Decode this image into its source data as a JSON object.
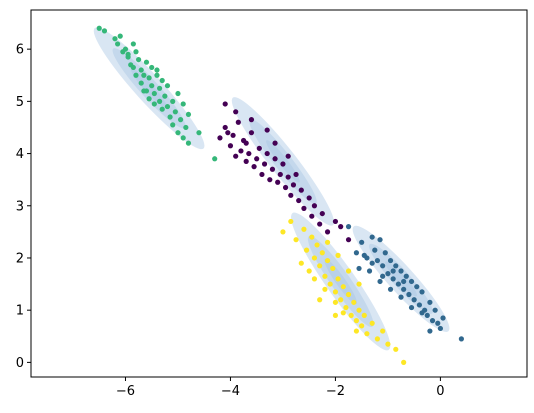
{
  "chart_data": {
    "type": "scatter",
    "title": "",
    "xlabel": "",
    "ylabel": "",
    "xlim": [
      -7.8,
      1.65
    ],
    "ylim": [
      -0.28,
      6.75
    ],
    "xticks": [
      -6,
      -4,
      -2,
      0
    ],
    "yticks": [
      0,
      1,
      2,
      3,
      4,
      5,
      6
    ],
    "grid": false,
    "legend": "none",
    "colors": {
      "green": "#35b779",
      "purple": "#440154",
      "yellow": "#fde725",
      "teal": "#31688e",
      "ellipse": "#aac8e4"
    },
    "ellipses": [
      {
        "cluster": "green",
        "cx": -5.55,
        "cy": 5.25,
        "semi_major": 1.55,
        "semi_minor": 0.26,
        "angle_deg": -48
      },
      {
        "cluster": "purple",
        "cx": -3.0,
        "cy": 3.85,
        "semi_major": 1.55,
        "semi_minor": 0.25,
        "angle_deg": -52
      },
      {
        "cluster": "yellow",
        "cx": -1.9,
        "cy": 1.55,
        "semi_major": 1.6,
        "semi_minor": 0.28,
        "angle_deg": -55
      },
      {
        "cluster": "teal",
        "cx": -0.75,
        "cy": 1.6,
        "semi_major": 1.35,
        "semi_minor": 0.25,
        "angle_deg": -48
      }
    ],
    "series": [
      {
        "color_key": "green",
        "points": [
          [
            -6.5,
            6.4
          ],
          [
            -6.4,
            6.35
          ],
          [
            -6.2,
            6.2
          ],
          [
            -6.15,
            6.1
          ],
          [
            -6.1,
            6.25
          ],
          [
            -6.05,
            5.95
          ],
          [
            -6.0,
            6.0
          ],
          [
            -5.95,
            5.85
          ],
          [
            -5.9,
            5.7
          ],
          [
            -5.85,
            5.65
          ],
          [
            -5.85,
            6.1
          ],
          [
            -5.8,
            5.5
          ],
          [
            -5.75,
            5.8
          ],
          [
            -5.7,
            5.6
          ],
          [
            -5.7,
            5.35
          ],
          [
            -5.65,
            5.5
          ],
          [
            -5.6,
            5.2
          ],
          [
            -5.6,
            5.75
          ],
          [
            -5.55,
            5.05
          ],
          [
            -5.55,
            5.45
          ],
          [
            -5.5,
            5.3
          ],
          [
            -5.5,
            5.65
          ],
          [
            -5.45,
            5.15
          ],
          [
            -5.45,
            4.95
          ],
          [
            -5.4,
            5.5
          ],
          [
            -5.35,
            5.25
          ],
          [
            -5.35,
            5.0
          ],
          [
            -5.3,
            4.85
          ],
          [
            -5.3,
            5.4
          ],
          [
            -5.25,
            5.1
          ],
          [
            -5.2,
            4.9
          ],
          [
            -5.2,
            5.3
          ],
          [
            -5.15,
            4.7
          ],
          [
            -5.1,
            5.0
          ],
          [
            -5.1,
            4.55
          ],
          [
            -5.05,
            4.8
          ],
          [
            -5.0,
            4.4
          ],
          [
            -5.0,
            5.15
          ],
          [
            -4.95,
            4.65
          ],
          [
            -4.9,
            4.3
          ],
          [
            -4.9,
            4.95
          ],
          [
            -4.85,
            4.5
          ],
          [
            -4.8,
            4.2
          ],
          [
            -4.8,
            4.75
          ],
          [
            -4.6,
            4.4
          ],
          [
            -4.3,
            3.9
          ],
          [
            -5.95,
            5.9
          ],
          [
            -5.8,
            5.95
          ],
          [
            -5.65,
            5.2
          ],
          [
            -5.4,
            5.6
          ]
        ]
      },
      {
        "color_key": "purple",
        "points": [
          [
            -4.2,
            4.3
          ],
          [
            -4.1,
            4.5
          ],
          [
            -4.0,
            4.15
          ],
          [
            -3.95,
            4.35
          ],
          [
            -3.9,
            3.95
          ],
          [
            -3.85,
            4.6
          ],
          [
            -3.8,
            4.05
          ],
          [
            -3.75,
            4.25
          ],
          [
            -3.7,
            3.85
          ],
          [
            -3.65,
            4.0
          ],
          [
            -3.6,
            4.4
          ],
          [
            -3.55,
            3.75
          ],
          [
            -3.5,
            3.9
          ],
          [
            -3.45,
            4.1
          ],
          [
            -3.4,
            3.6
          ],
          [
            -3.35,
            3.8
          ],
          [
            -3.3,
            4.0
          ],
          [
            -3.25,
            3.5
          ],
          [
            -3.2,
            3.7
          ],
          [
            -3.15,
            3.9
          ],
          [
            -3.1,
            3.45
          ],
          [
            -3.05,
            3.6
          ],
          [
            -3.0,
            3.8
          ],
          [
            -2.95,
            3.35
          ],
          [
            -2.9,
            3.55
          ],
          [
            -2.85,
            3.2
          ],
          [
            -2.8,
            3.4
          ],
          [
            -2.75,
            3.6
          ],
          [
            -2.7,
            3.1
          ],
          [
            -2.65,
            3.3
          ],
          [
            -2.6,
            2.95
          ],
          [
            -2.5,
            3.15
          ],
          [
            -2.45,
            2.8
          ],
          [
            -2.4,
            3.0
          ],
          [
            -2.3,
            2.65
          ],
          [
            -2.25,
            2.85
          ],
          [
            -2.15,
            2.5
          ],
          [
            -2.0,
            2.7
          ],
          [
            -1.9,
            2.6
          ],
          [
            -1.75,
            2.35
          ],
          [
            -4.1,
            4.95
          ],
          [
            -3.9,
            4.8
          ],
          [
            -3.6,
            4.65
          ],
          [
            -3.3,
            4.45
          ],
          [
            -3.15,
            4.2
          ],
          [
            -2.9,
            3.95
          ],
          [
            -4.05,
            4.4
          ],
          [
            -3.7,
            4.2
          ]
        ]
      },
      {
        "color_key": "yellow",
        "points": [
          [
            -3.0,
            2.5
          ],
          [
            -2.85,
            2.7
          ],
          [
            -2.75,
            2.35
          ],
          [
            -2.6,
            2.55
          ],
          [
            -2.55,
            2.15
          ],
          [
            -2.45,
            2.4
          ],
          [
            -2.4,
            2.0
          ],
          [
            -2.35,
            2.25
          ],
          [
            -2.3,
            1.85
          ],
          [
            -2.25,
            2.1
          ],
          [
            -2.2,
            1.65
          ],
          [
            -2.15,
            1.95
          ],
          [
            -2.1,
            1.5
          ],
          [
            -2.05,
            1.8
          ],
          [
            -2.0,
            1.35
          ],
          [
            -1.95,
            1.6
          ],
          [
            -1.9,
            1.2
          ],
          [
            -1.85,
            1.45
          ],
          [
            -1.8,
            1.05
          ],
          [
            -1.75,
            1.3
          ],
          [
            -1.7,
            0.9
          ],
          [
            -1.65,
            1.15
          ],
          [
            -1.6,
            0.8
          ],
          [
            -1.55,
            1.0
          ],
          [
            -1.5,
            0.7
          ],
          [
            -1.45,
            0.9
          ],
          [
            -1.4,
            0.55
          ],
          [
            -1.3,
            0.75
          ],
          [
            -1.2,
            0.45
          ],
          [
            -1.1,
            0.6
          ],
          [
            -1.0,
            0.35
          ],
          [
            -0.85,
            0.25
          ],
          [
            -0.7,
            0.0
          ],
          [
            -2.4,
            1.6
          ],
          [
            -2.2,
            1.4
          ],
          [
            -2.0,
            1.15
          ],
          [
            -1.85,
            0.95
          ],
          [
            -1.6,
            0.6
          ],
          [
            -2.3,
            1.2
          ],
          [
            -2.5,
            1.75
          ],
          [
            -2.15,
            2.3
          ],
          [
            -1.95,
            2.05
          ],
          [
            -1.75,
            1.75
          ],
          [
            -1.55,
            1.5
          ],
          [
            -2.65,
            1.9
          ],
          [
            -2.0,
            0.9
          ]
        ]
      },
      {
        "color_key": "teal",
        "points": [
          [
            -1.75,
            2.6
          ],
          [
            -1.6,
            2.1
          ],
          [
            -1.5,
            2.3
          ],
          [
            -1.4,
            2.0
          ],
          [
            -1.3,
            2.4
          ],
          [
            -1.25,
            2.15
          ],
          [
            -1.2,
            1.95
          ],
          [
            -1.15,
            2.35
          ],
          [
            -1.1,
            1.85
          ],
          [
            -1.05,
            2.1
          ],
          [
            -1.0,
            1.7
          ],
          [
            -0.95,
            1.95
          ],
          [
            -0.9,
            1.6
          ],
          [
            -0.85,
            1.85
          ],
          [
            -0.8,
            1.5
          ],
          [
            -0.75,
            1.75
          ],
          [
            -0.7,
            1.4
          ],
          [
            -0.65,
            1.65
          ],
          [
            -0.6,
            1.3
          ],
          [
            -0.55,
            1.55
          ],
          [
            -0.5,
            1.2
          ],
          [
            -0.45,
            1.45
          ],
          [
            -0.4,
            1.1
          ],
          [
            -0.35,
            1.35
          ],
          [
            -0.3,
            1.0
          ],
          [
            -0.25,
            0.9
          ],
          [
            -0.2,
            1.15
          ],
          [
            -0.15,
            0.8
          ],
          [
            -0.1,
            1.0
          ],
          [
            -0.05,
            0.75
          ],
          [
            0.0,
            0.65
          ],
          [
            0.05,
            0.85
          ],
          [
            -1.55,
            1.8
          ],
          [
            -1.35,
            1.75
          ],
          [
            -1.15,
            1.55
          ],
          [
            -0.95,
            1.4
          ],
          [
            -0.75,
            1.25
          ],
          [
            -0.55,
            1.05
          ],
          [
            -0.35,
            0.95
          ],
          [
            -1.45,
            2.05
          ],
          [
            -1.3,
            1.9
          ],
          [
            -1.1,
            1.65
          ],
          [
            -0.9,
            1.75
          ],
          [
            -0.7,
            1.55
          ],
          [
            0.4,
            0.45
          ],
          [
            -0.2,
            0.6
          ]
        ]
      }
    ]
  }
}
